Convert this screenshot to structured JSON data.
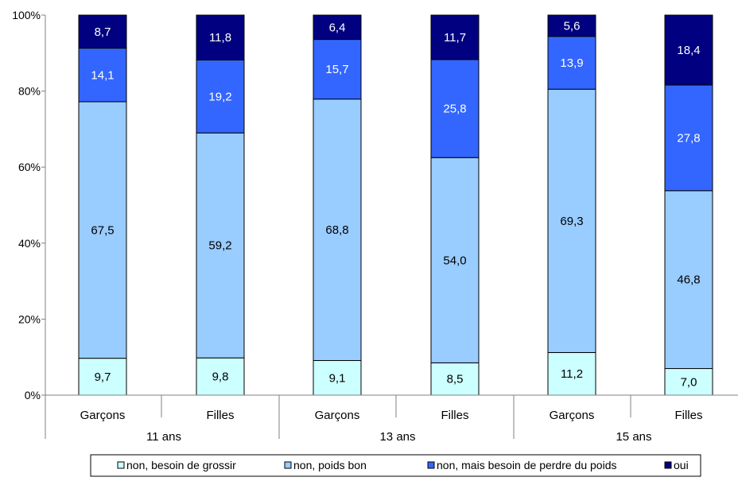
{
  "chart_data": {
    "type": "bar",
    "stacked": true,
    "percent": true,
    "groups": [
      {
        "label": "11 ans",
        "categories": [
          "Garçons",
          "Filles"
        ]
      },
      {
        "label": "13 ans",
        "categories": [
          "Garçons",
          "Filles"
        ]
      },
      {
        "label": "15 ans",
        "categories": [
          "Garçons",
          "Filles"
        ]
      }
    ],
    "categories": [
      "Garçons",
      "Filles",
      "Garçons",
      "Filles",
      "Garçons",
      "Filles"
    ],
    "series": [
      {
        "name": "non, besoin de grossir",
        "values": [
          9.7,
          9.8,
          9.1,
          8.5,
          11.2,
          7.0
        ],
        "labels": [
          "9,7",
          "9,8",
          "9,1",
          "8,5",
          "11,2",
          "7,0"
        ],
        "color": "#ccffff",
        "label_color": "#000000"
      },
      {
        "name": "non, poids bon",
        "values": [
          67.5,
          59.2,
          68.8,
          54.0,
          69.3,
          46.8
        ],
        "labels": [
          "67,5",
          "59,2",
          "68,8",
          "54,0",
          "69,3",
          "46,8"
        ],
        "color": "#99ccff",
        "label_color": "#000000"
      },
      {
        "name": "non, mais besoin de perdre du poids",
        "values": [
          14.1,
          19.2,
          15.7,
          25.8,
          13.9,
          27.8
        ],
        "labels": [
          "14,1",
          "19,2",
          "15,7",
          "25,8",
          "13,9",
          "27,8"
        ],
        "color": "#3366ff",
        "label_color": "#ffffff"
      },
      {
        "name": "oui",
        "values": [
          8.7,
          11.8,
          6.4,
          11.7,
          5.6,
          18.4
        ],
        "labels": [
          "8,7",
          "11,8",
          "6,4",
          "11,7",
          "5,6",
          "18,4"
        ],
        "color": "#000080",
        "label_color": "#ffffff"
      }
    ],
    "ylim": [
      0,
      100
    ],
    "yticks": [
      "0%",
      "20%",
      "40%",
      "60%",
      "80%",
      "100%"
    ],
    "legend_position": "bottom",
    "grid": false
  }
}
